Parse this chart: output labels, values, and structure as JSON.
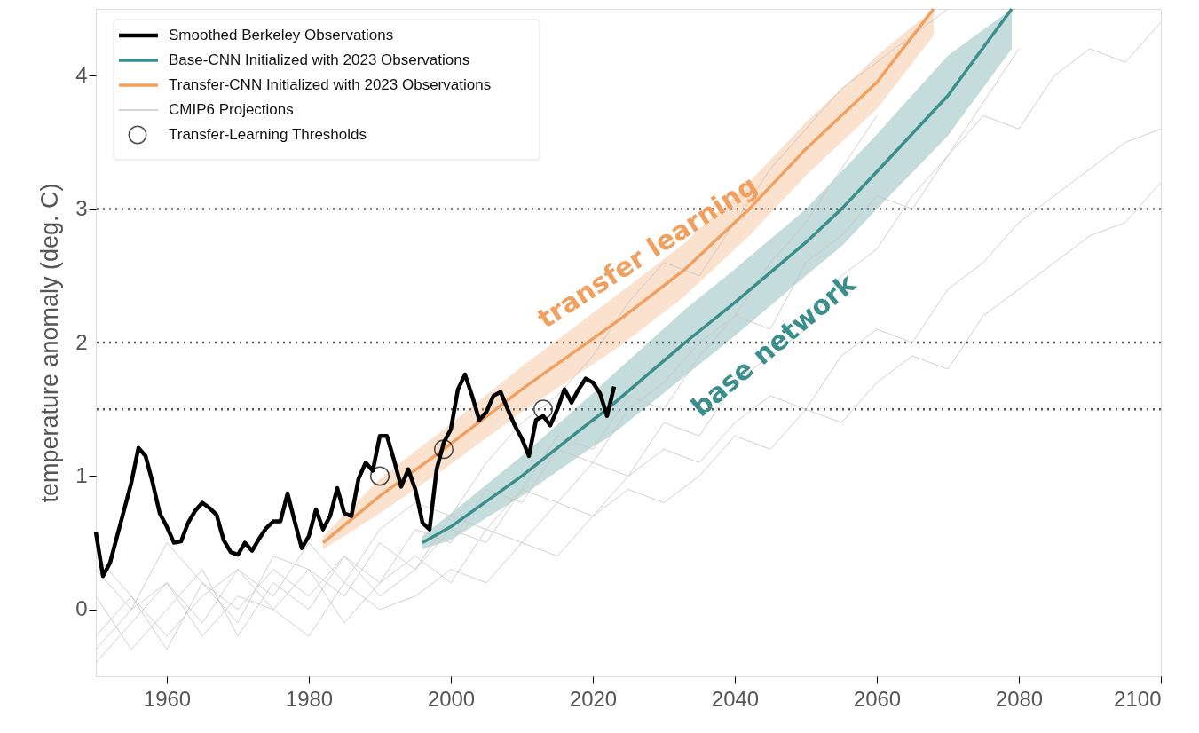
{
  "chart_data": {
    "type": "line",
    "ylabel": "temperature anomaly (deg. C)",
    "xlim": [
      1950,
      2100
    ],
    "xticks": [
      1960,
      1980,
      2000,
      2020,
      2040,
      2060,
      2080,
      2100
    ],
    "ylim": [
      -0.5,
      4.5
    ],
    "yticks": [
      0,
      1,
      2,
      3,
      4
    ],
    "grid": false,
    "legend": "top left",
    "ref_lines": [
      {
        "axis": "y",
        "value": 1.5,
        "color": "#555555",
        "line_style": "dotted"
      },
      {
        "axis": "y",
        "value": 2,
        "color": "#555555",
        "line_style": "dotted"
      },
      {
        "axis": "y",
        "value": 3,
        "color": "#555555",
        "line_style": "dotted"
      }
    ],
    "annotations": [
      "transfer learning",
      "base network"
    ],
    "series": [
      {
        "name": "Smoothed Berkeley Observations",
        "color": "#000000",
        "x": [
          1950,
          1951,
          1952,
          1953,
          1954,
          1955,
          1956,
          1957,
          1958,
          1959,
          1960,
          1961,
          1962,
          1963,
          1964,
          1965,
          1966,
          1967,
          1968,
          1969,
          1970,
          1971,
          1972,
          1973,
          1974,
          1975,
          1976,
          1977,
          1978,
          1979,
          1980,
          1981,
          1982,
          1983,
          1984,
          1985,
          1986,
          1987,
          1988,
          1989,
          1990,
          1991,
          1992,
          1993,
          1994,
          1995,
          1996,
          1997,
          1998,
          1999,
          2000,
          2001,
          2002,
          2003,
          2004,
          2005,
          2006,
          2007,
          2008,
          2009,
          2010,
          2011,
          2012,
          2013,
          2014,
          2015,
          2016,
          2017,
          2018,
          2019,
          2020,
          2021,
          2022,
          2023
        ],
        "values": [
          0.58,
          0.25,
          0.35,
          0.55,
          0.75,
          0.95,
          1.21,
          1.15,
          0.95,
          0.72,
          0.62,
          0.5,
          0.51,
          0.65,
          0.74,
          0.8,
          0.76,
          0.71,
          0.52,
          0.43,
          0.41,
          0.5,
          0.44,
          0.53,
          0.61,
          0.66,
          0.66,
          0.87,
          0.66,
          0.46,
          0.55,
          0.75,
          0.6,
          0.7,
          0.91,
          0.72,
          0.7,
          0.98,
          1.1,
          1.04,
          1.3,
          1.3,
          1.12,
          0.92,
          1.05,
          0.9,
          0.65,
          0.6,
          1.05,
          1.25,
          1.35,
          1.65,
          1.76,
          1.6,
          1.42,
          1.48,
          1.6,
          1.63,
          1.5,
          1.38,
          1.28,
          1.15,
          1.42,
          1.45,
          1.38,
          1.5,
          1.65,
          1.55,
          1.65,
          1.73,
          1.7,
          1.62,
          1.45,
          1.67
        ]
      },
      {
        "name": "Base-CNN Initialized with 2023 Observations",
        "color": "#3a8f8c",
        "x": [
          1996,
          2000,
          2010,
          2020,
          2022,
          2033,
          2040,
          2050,
          2055,
          2060,
          2070,
          2079
        ],
        "values": [
          0.5,
          0.62,
          1.0,
          1.42,
          1.5,
          2.0,
          2.3,
          2.75,
          3.0,
          3.28,
          3.85,
          4.5
        ],
        "lower": [
          0.45,
          0.52,
          0.85,
          1.22,
          1.28,
          1.75,
          2.05,
          2.5,
          2.72,
          3.0,
          3.55,
          4.2
        ],
        "upper": [
          0.55,
          0.72,
          1.15,
          1.62,
          1.72,
          2.25,
          2.55,
          3.0,
          3.28,
          3.56,
          4.15,
          4.5
        ]
      },
      {
        "name": "Transfer-CNN Initialized with 2023 Observations",
        "color": "#f0a060",
        "x": [
          1982,
          1990,
          1999,
          2010,
          2024,
          2033,
          2042,
          2050,
          2060,
          2068
        ],
        "values": [
          0.5,
          0.85,
          1.2,
          1.65,
          2.18,
          2.55,
          3.0,
          3.45,
          3.95,
          4.5
        ],
        "lower": [
          0.45,
          0.72,
          1.05,
          1.48,
          1.98,
          2.35,
          2.8,
          3.25,
          3.75,
          4.3
        ],
        "upper": [
          0.55,
          0.98,
          1.35,
          1.82,
          2.38,
          2.75,
          3.2,
          3.65,
          4.15,
          4.5
        ]
      },
      {
        "name": "CMIP6 Projections",
        "color": "#c4c4c4",
        "x": [
          1950,
          1955,
          1960,
          1965,
          1970,
          1975,
          1980,
          1985,
          1990,
          1995,
          2000,
          2005,
          2010,
          2015,
          2020,
          2025,
          2030,
          2035,
          2040,
          2045,
          2050,
          2055,
          2060
        ],
        "values": [
          -0.2,
          0.1,
          -0.3,
          0.2,
          0.0,
          0.3,
          0.1,
          0.4,
          0.2,
          0.6,
          0.5,
          0.9,
          0.8,
          1.2,
          1.1,
          1.5,
          1.7,
          2.0,
          2.2,
          2.6,
          2.9,
          3.3,
          3.7
        ]
      },
      {
        "type": "line",
        "color": "#c4c4c4",
        "x": [
          1950,
          1955,
          1960,
          1965,
          1970,
          1975,
          1980,
          1985,
          1990,
          1995,
          2000,
          2005,
          2010,
          2015,
          2020,
          2025,
          2030,
          2035,
          2040,
          2045,
          2050,
          2055,
          2060,
          2065,
          2070,
          2075,
          2080
        ],
        "values": [
          0.3,
          0.0,
          0.5,
          0.2,
          -0.1,
          0.4,
          0.3,
          0.1,
          0.5,
          0.3,
          0.7,
          0.6,
          0.9,
          0.8,
          1.1,
          1.0,
          1.4,
          1.3,
          1.7,
          1.9,
          2.1,
          2.5,
          2.7,
          3.1,
          3.4,
          3.8,
          4.2
        ]
      },
      {
        "type": "line",
        "color": "#c4c4c4",
        "x": [
          1950,
          1955,
          1960,
          1965,
          1970,
          1975,
          1980,
          1985,
          1990,
          1995,
          2000,
          2005,
          2010,
          2015,
          2020,
          2025,
          2030,
          2035,
          2040,
          2045,
          2050,
          2055,
          2060,
          2065,
          2070,
          2075,
          2080,
          2085,
          2090,
          2095,
          2100
        ],
        "values": [
          -0.4,
          -0.1,
          0.2,
          -0.2,
          0.1,
          0.0,
          0.3,
          -0.1,
          0.2,
          0.4,
          0.2,
          0.6,
          0.5,
          0.8,
          0.7,
          1.0,
          1.2,
          1.1,
          1.4,
          1.6,
          1.5,
          1.9,
          2.1,
          2.0,
          2.4,
          2.6,
          2.9,
          3.1,
          3.3,
          3.5,
          3.6
        ]
      },
      {
        "type": "line",
        "color": "#c4c4c4",
        "x": [
          1950,
          1955,
          1960,
          1965,
          1970,
          1975,
          1980,
          1985,
          1990,
          1995,
          2000,
          2005,
          2010,
          2015,
          2020,
          2025,
          2030,
          2035,
          2040,
          2045,
          2050,
          2055,
          2060,
          2065,
          2070,
          2075,
          2080,
          2085,
          2090,
          2095,
          2100
        ],
        "values": [
          0.1,
          -0.3,
          0.0,
          0.3,
          -0.2,
          0.2,
          0.0,
          0.4,
          0.1,
          0.3,
          0.6,
          0.5,
          0.9,
          1.3,
          1.2,
          1.6,
          1.5,
          1.9,
          2.2,
          2.1,
          2.6,
          2.8,
          3.1,
          3.0,
          3.4,
          3.7,
          3.6,
          4.0,
          4.2,
          4.1,
          4.4
        ]
      },
      {
        "type": "line",
        "color": "#c4c4c4",
        "x": [
          1950,
          1955,
          1960,
          1965,
          1970,
          1975,
          1980,
          1985,
          1990,
          1995,
          2000,
          2005,
          2010,
          2015,
          2020,
          2025,
          2030,
          2035,
          2040,
          2045,
          2050,
          2055,
          2060,
          2065,
          2070
        ],
        "values": [
          -0.3,
          0.0,
          0.2,
          -0.1,
          0.3,
          0.1,
          0.5,
          0.2,
          0.6,
          0.8,
          0.7,
          1.1,
          1.4,
          1.6,
          1.9,
          2.3,
          2.6,
          2.5,
          2.9,
          3.3,
          3.6,
          3.9,
          4.1,
          4.3,
          4.5
        ]
      },
      {
        "type": "line",
        "color": "#c4c4c4",
        "x": [
          1950,
          1955,
          1960,
          1965,
          1970,
          1975,
          1980,
          1985,
          1990,
          1995,
          2000,
          2005,
          2010,
          2015,
          2020,
          2025,
          2030,
          2035,
          2040,
          2045,
          2050,
          2055,
          2060,
          2065,
          2070,
          2075,
          2080,
          2085,
          2090,
          2095,
          2100
        ],
        "values": [
          0.4,
          0.1,
          -0.2,
          0.1,
          0.3,
          0.0,
          -0.2,
          0.2,
          0.0,
          0.1,
          0.3,
          0.2,
          0.5,
          0.4,
          0.7,
          0.9,
          0.8,
          1.0,
          1.3,
          1.2,
          1.5,
          1.4,
          1.7,
          1.9,
          1.8,
          2.2,
          2.4,
          2.6,
          2.8,
          2.9,
          3.2
        ]
      },
      {
        "type": "scatter",
        "name": "Transfer-Learning Thresholds",
        "color": "#000000",
        "marker": "circle",
        "x": [
          1990,
          1999,
          2013
        ],
        "values": [
          1.0,
          1.2,
          1.5
        ]
      }
    ]
  }
}
